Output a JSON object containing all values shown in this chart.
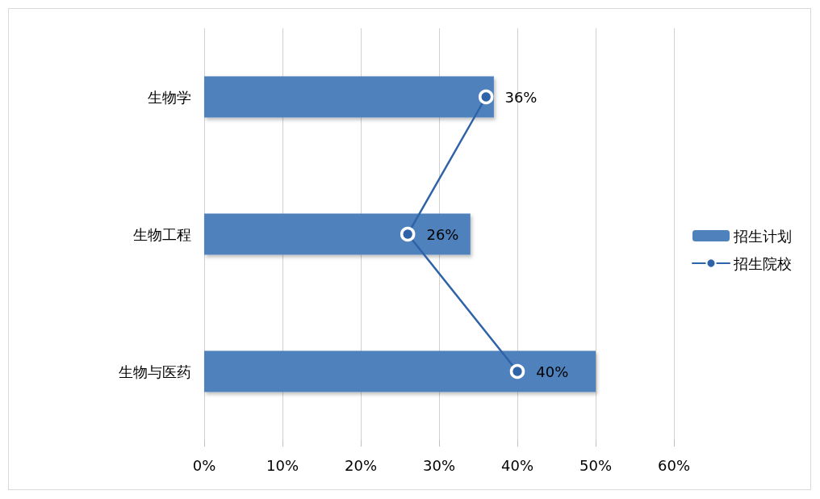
{
  "chart_data": {
    "type": "bar",
    "orientation": "horizontal",
    "categories": [
      "生物学",
      "生物工程",
      "生物与医药"
    ],
    "series": [
      {
        "name": "招生计划",
        "color": "#4f81bd",
        "values": [
          37,
          34,
          50
        ]
      },
      {
        "name": "招生院校",
        "type": "line",
        "color": "#2e63a8",
        "values": [
          36,
          26,
          40
        ],
        "value_labels": [
          "36%",
          "26%",
          "40%"
        ]
      }
    ],
    "xlim": [
      0,
      60
    ],
    "xticks": [
      {
        "value": 0,
        "label": "0%"
      },
      {
        "value": 10,
        "label": "10%"
      },
      {
        "value": 20,
        "label": "20%"
      },
      {
        "value": 30,
        "label": "30%"
      },
      {
        "value": 40,
        "label": "40%"
      },
      {
        "value": 50,
        "label": "50%"
      },
      {
        "value": 60,
        "label": "60%"
      }
    ],
    "grid": "x",
    "legend": "right",
    "marker": "circle"
  }
}
